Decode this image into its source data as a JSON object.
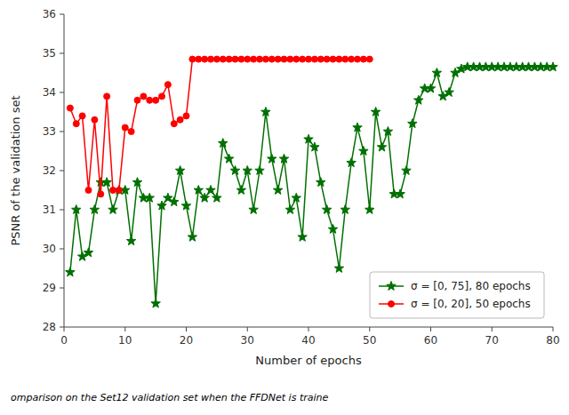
{
  "chart_data": {
    "type": "line",
    "xlabel": "Number of epochs",
    "ylabel": "PSNR of the validation set",
    "caption": "omparison on the Set12 validation set when the FFDNet is traine",
    "xlim": [
      0,
      80
    ],
    "ylim": [
      28,
      36
    ],
    "xticks": [
      0,
      10,
      20,
      30,
      40,
      50,
      60,
      70,
      80
    ],
    "yticks": [
      28,
      29,
      30,
      31,
      32,
      33,
      34,
      35,
      36
    ],
    "grid": false,
    "legend": "lower right",
    "series": [
      {
        "name": "σ = [0, 75], 80 epochs",
        "color": "#007000",
        "marker": "star",
        "x": [
          1,
          2,
          3,
          4,
          5,
          6,
          7,
          8,
          9,
          10,
          11,
          12,
          13,
          14,
          15,
          16,
          17,
          18,
          19,
          20,
          21,
          22,
          23,
          24,
          25,
          26,
          27,
          28,
          29,
          30,
          31,
          32,
          33,
          34,
          35,
          36,
          37,
          38,
          39,
          40,
          41,
          42,
          43,
          44,
          45,
          46,
          47,
          48,
          49,
          50,
          51,
          52,
          53,
          54,
          55,
          56,
          57,
          58,
          59,
          60,
          61,
          62,
          63,
          64,
          65,
          66,
          67,
          68,
          69,
          70,
          71,
          72,
          73,
          74,
          75,
          76,
          77,
          78,
          79,
          80
        ],
        "values": [
          29.4,
          31.0,
          29.8,
          29.9,
          31.0,
          31.7,
          31.7,
          31.0,
          31.5,
          31.5,
          30.2,
          31.7,
          31.3,
          31.3,
          28.6,
          31.1,
          31.3,
          31.2,
          32.0,
          31.1,
          30.3,
          31.5,
          31.3,
          31.5,
          31.3,
          32.7,
          32.3,
          32.0,
          31.5,
          32.0,
          31.0,
          32.0,
          33.5,
          32.3,
          31.5,
          32.3,
          31.0,
          31.3,
          30.3,
          32.8,
          32.6,
          31.7,
          31.0,
          30.5,
          29.5,
          31.0,
          32.2,
          33.1,
          32.5,
          31.0,
          33.5,
          32.6,
          33.0,
          31.4,
          31.4,
          32.0,
          33.2,
          33.8,
          34.1,
          34.1,
          34.5,
          33.9,
          34.0,
          34.5,
          34.6,
          34.65,
          34.65,
          34.65,
          34.65,
          34.65,
          34.65,
          34.65,
          34.65,
          34.65,
          34.65,
          34.65,
          34.65,
          34.65,
          34.65,
          34.65
        ]
      },
      {
        "name": "σ = [0, 20], 50 epochs",
        "color": "#ff0000",
        "marker": "circle",
        "x": [
          1,
          2,
          3,
          4,
          5,
          6,
          7,
          8,
          9,
          10,
          11,
          12,
          13,
          14,
          15,
          16,
          17,
          18,
          19,
          20,
          21,
          22,
          23,
          24,
          25,
          26,
          27,
          28,
          29,
          30,
          31,
          32,
          33,
          34,
          35,
          36,
          37,
          38,
          39,
          40,
          41,
          42,
          43,
          44,
          45,
          46,
          47,
          48,
          49,
          50
        ],
        "values": [
          33.6,
          33.2,
          33.4,
          31.5,
          33.3,
          31.4,
          33.9,
          31.5,
          31.5,
          33.1,
          33.0,
          33.8,
          33.9,
          33.8,
          33.8,
          33.9,
          34.2,
          33.2,
          33.3,
          33.4,
          34.85,
          34.85,
          34.85,
          34.85,
          34.85,
          34.85,
          34.85,
          34.85,
          34.85,
          34.85,
          34.85,
          34.85,
          34.85,
          34.85,
          34.85,
          34.85,
          34.85,
          34.85,
          34.85,
          34.85,
          34.85,
          34.85,
          34.85,
          34.85,
          34.85,
          34.85,
          34.85,
          34.85,
          34.85,
          34.85
        ]
      }
    ]
  }
}
